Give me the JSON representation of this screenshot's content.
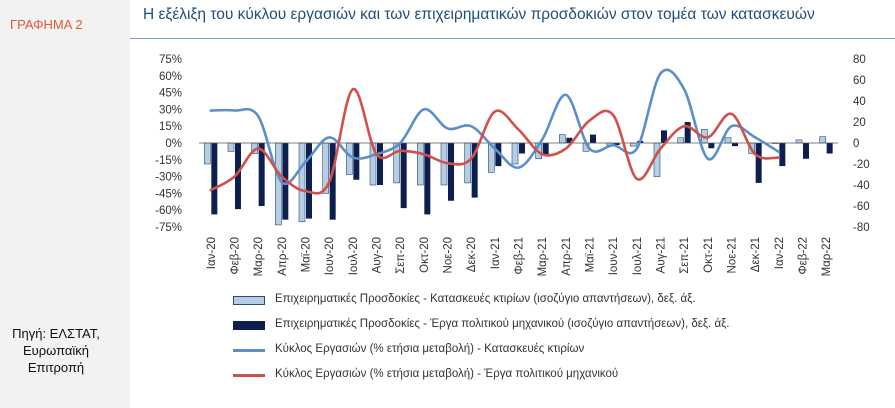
{
  "sidebar": {
    "chart_label": "ΓΡΑΦΗΜΑ 2",
    "source_lines": [
      "Πηγή: ΕΛΣΤΑΤ,",
      "Ευρωπαϊκή",
      "Επιτροπή"
    ]
  },
  "colors": {
    "series_building_conf": "#b7cde3",
    "series_building_conf_border": "#1f4e79",
    "series_civil_conf": "#0c1f4e",
    "series_building_turnover": "#5b8fc9",
    "series_civil_turnover": "#d0504a",
    "title": "#1f4e79",
    "label": "#e05a3c"
  },
  "chart_data": {
    "type": "bar+line",
    "title": "Η εξέλιξη του κύκλου εργασιών και των επιχειρηματικών προσδοκιών στον τομέα των κατασκευών",
    "categories": [
      "Ιαν-20",
      "Φεβ-20",
      "Μαρ-20",
      "Απρ-20",
      "Μαϊ-20",
      "Ιουν-20",
      "Ιουλ-20",
      "Αυγ-20",
      "Σεπ-20",
      "Οκτ-20",
      "Νοε-20",
      "Δεκ-20",
      "Ιαν-21",
      "Φεβ-21",
      "Μαρ-21",
      "Απρ-21",
      "Μαϊ-21",
      "Ιουν-21",
      "Ιουλ-21",
      "Αυγ-21",
      "Σεπ-21",
      "Οκτ-21",
      "Νοε-21",
      "Δεκ-21",
      "Ιαν-22",
      "Φεβ-22",
      "Μαρ-22"
    ],
    "left_axis": {
      "ticks": [
        "75%",
        "60%",
        "45%",
        "30%",
        "15%",
        "0%",
        "-15%",
        "-30%",
        "-45%",
        "-60%",
        "-75%"
      ],
      "ylim": [
        -75,
        75
      ]
    },
    "right_axis": {
      "ticks": [
        "80",
        "60",
        "40",
        "20",
        "0",
        "-20",
        "-40",
        "-60",
        "-80"
      ],
      "ylim": [
        -80,
        80
      ]
    },
    "bars": [
      {
        "name": "Επιχειρηματικές Προσδοκίες - Κατασκευές κτιρίων (ισοζύγιο απαντήσεων), δεξ. άξ.",
        "axis": "right",
        "values": [
          -20,
          -8,
          -10,
          -78,
          -75,
          -48,
          -30,
          -40,
          -38,
          -40,
          -40,
          -38,
          -28,
          -20,
          -15,
          8,
          -8,
          -2,
          -3,
          -32,
          5,
          13,
          5,
          -10,
          0,
          3,
          6
        ]
      },
      {
        "name": "Επιχειρηματικές Προσδοκίες - Έργα πολιτικού μηχανικού (ισοζύγιο απαντήσεων), δεξ. άξ.",
        "axis": "right",
        "values": [
          -68,
          -63,
          -60,
          -73,
          -72,
          -73,
          -35,
          -40,
          -62,
          -68,
          -55,
          -52,
          -22,
          -10,
          -12,
          5,
          8,
          -2,
          2,
          12,
          20,
          -5,
          -3,
          -38,
          -22,
          -15,
          -10
        ]
      }
    ],
    "lines": [
      {
        "name": "Κύκλος Εργασιών (% ετήσια μεταβολή) - Κατασκευές κτιρίων",
        "axis": "left",
        "values": [
          29,
          29,
          24,
          -35,
          -17,
          5,
          -13,
          -10,
          0,
          30,
          13,
          15,
          -5,
          -22,
          3,
          43,
          -5,
          -2,
          -5,
          62,
          48,
          -14,
          15,
          5,
          -8,
          null,
          null
        ]
      },
      {
        "name": "Κύκλος Εργασιών (% ετήσια μεταβολή) - Έργα πολιτικού μηχανικού",
        "axis": "left",
        "values": [
          -42,
          -30,
          -5,
          -30,
          -43,
          -35,
          48,
          -10,
          -7,
          -10,
          -18,
          -14,
          28,
          12,
          -10,
          -5,
          20,
          25,
          -32,
          -5,
          15,
          5,
          26,
          -10,
          -13,
          null,
          null
        ]
      }
    ]
  }
}
